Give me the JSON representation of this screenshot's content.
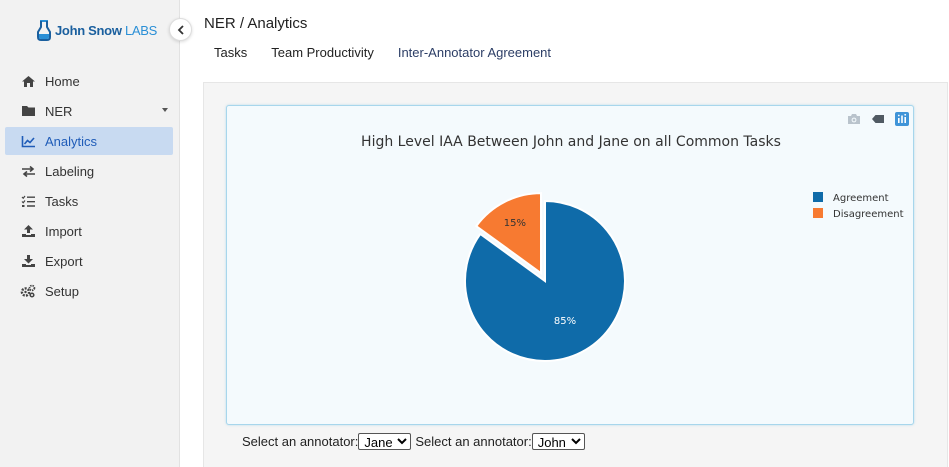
{
  "logo": {
    "brand": "John Snow",
    "labs": "LABS"
  },
  "sidebar": {
    "items": [
      {
        "label": "Home",
        "icon": "home-icon"
      },
      {
        "label": "NER",
        "icon": "folder-icon"
      },
      {
        "label": "Analytics",
        "icon": "chart-line-icon"
      },
      {
        "label": "Labeling",
        "icon": "exchange-icon"
      },
      {
        "label": "Tasks",
        "icon": "tasks-list-icon"
      },
      {
        "label": "Import",
        "icon": "upload-icon"
      },
      {
        "label": "Export",
        "icon": "download-icon"
      },
      {
        "label": "Setup",
        "icon": "gears-icon"
      }
    ]
  },
  "header": {
    "breadcrumb": "NER / Analytics"
  },
  "tabs": [
    {
      "label": "Tasks"
    },
    {
      "label": "Team Productivity"
    },
    {
      "label": "Inter-Annotator Agreement"
    }
  ],
  "colors": {
    "agreement": "#0f6ba9",
    "disagreement": "#f77a31",
    "active_nav_bg": "#c8daf1"
  },
  "chart_data": {
    "type": "pie",
    "title": "High Level IAA Between John and Jane on all Common Tasks",
    "labels": [
      "Agreement",
      "Disagreement"
    ],
    "values": [
      85,
      15
    ],
    "value_labels": [
      "85%",
      "15%"
    ],
    "pulled_slice": "Disagreement",
    "legend_position": "top-right"
  },
  "selectors": [
    {
      "label": "Select an annotator:",
      "value": "Jane"
    },
    {
      "label": "Select an annotator:",
      "value": "John"
    }
  ]
}
